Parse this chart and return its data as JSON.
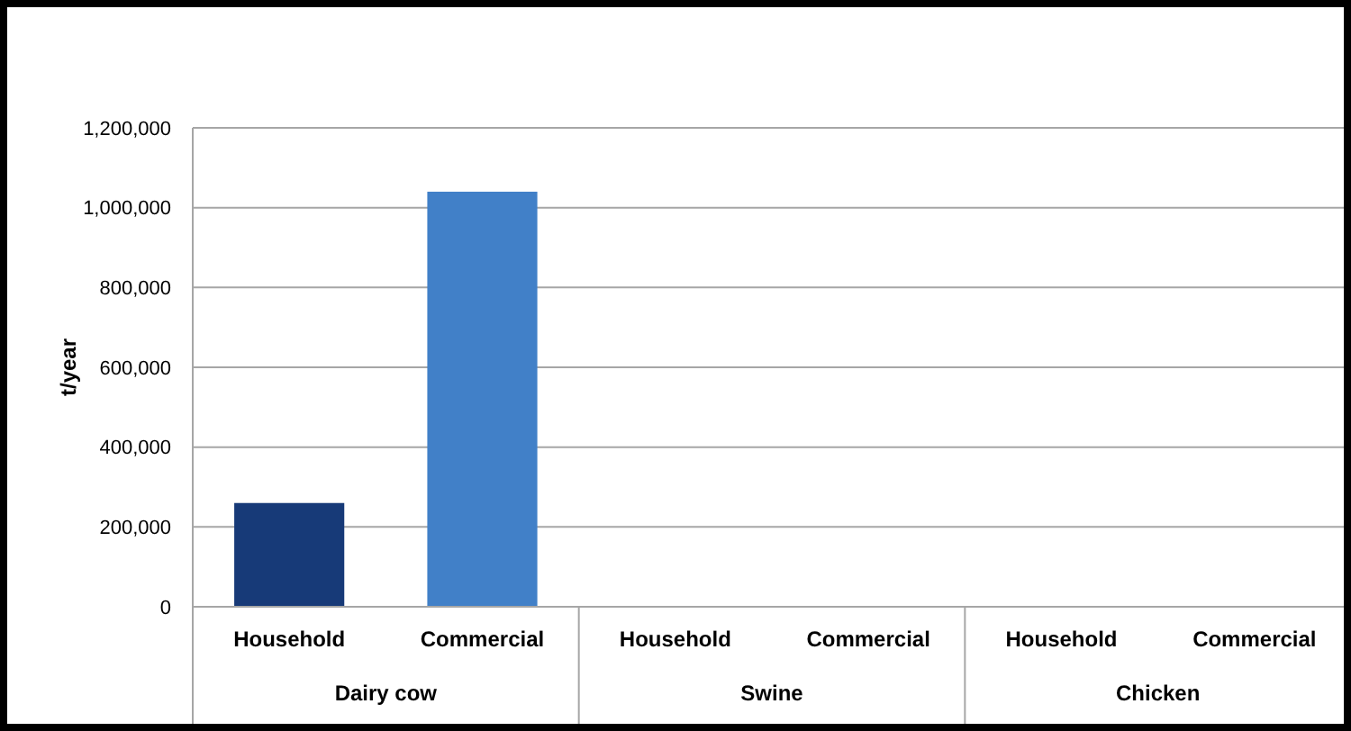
{
  "chart_data": {
    "type": "bar",
    "ylabel": "t/year",
    "categories": [
      "Household",
      "Commercial",
      "Household",
      "Commercial",
      "Household",
      "Commercial"
    ],
    "values": [
      260000,
      1040000,
      0,
      0,
      0,
      0
    ],
    "colors": [
      "#173a78",
      "#4180c8",
      "#173a78",
      "#4180c8",
      "#173a78",
      "#4180c8"
    ],
    "ylim": [
      0,
      1200000
    ],
    "yticks": [
      {
        "value": 0,
        "label": "0"
      },
      {
        "value": 200000,
        "label": "200,000"
      },
      {
        "value": 400000,
        "label": "400,000"
      },
      {
        "value": 600000,
        "label": "600,000"
      },
      {
        "value": 800000,
        "label": "800,000"
      },
      {
        "value": 1000000,
        "label": "1,000,000"
      },
      {
        "value": 1200000,
        "label": "1,200,000"
      }
    ],
    "grid": "y",
    "annotations": [
      "Dairy cow",
      "Swine",
      "Chicken"
    ]
  }
}
